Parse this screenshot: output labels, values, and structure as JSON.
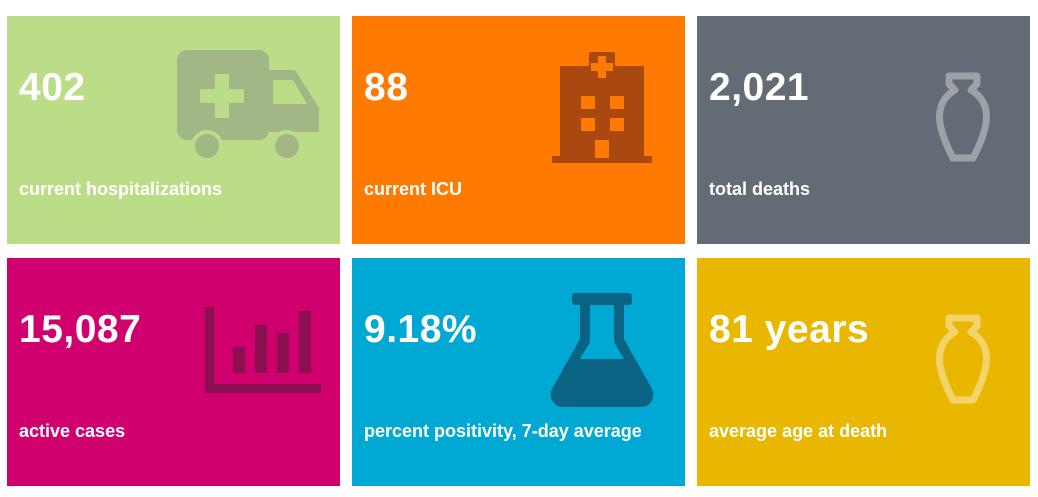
{
  "tiles": [
    {
      "id": "hospitalizations",
      "value": "402",
      "label": "current hospitalizations",
      "color": "#bcdd88",
      "icon": "ambulance-icon"
    },
    {
      "id": "icu",
      "value": "88",
      "label": "current ICU",
      "color": "#ff7a00",
      "icon": "hospital-icon"
    },
    {
      "id": "deaths",
      "value": "2,021",
      "label": "total deaths",
      "color": "#636b74",
      "icon": "urn-icon"
    },
    {
      "id": "active",
      "value": "15,087",
      "label": "active cases",
      "color": "#d1006f",
      "icon": "bar-chart-icon"
    },
    {
      "id": "positivity",
      "value": "9.18%",
      "label": "percent positivity, 7-day average",
      "color": "#00a9d4",
      "icon": "flask-icon"
    },
    {
      "id": "age",
      "value": "81 years",
      "label": "average age at death",
      "color": "#eab700",
      "icon": "urn-icon"
    }
  ]
}
